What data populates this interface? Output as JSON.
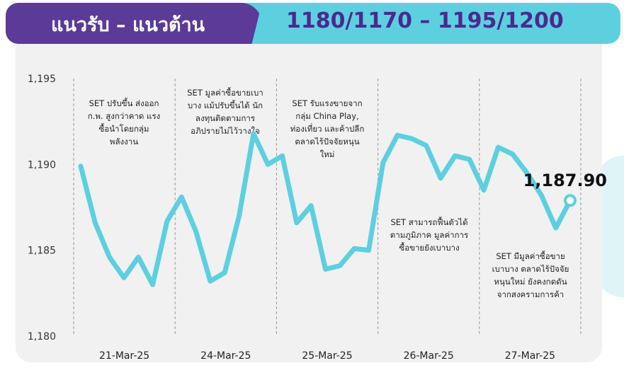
{
  "header": {
    "title": "แนวรับ – แนวต้าน",
    "levels": "1180/1170 – 1195/1200"
  },
  "colors": {
    "banner_left": "#5b3a98",
    "banner_right": "#5dd0df",
    "line": "#5dcfe0",
    "levels_text": "#4a2a8f"
  },
  "chart_data": {
    "type": "line",
    "y_ticks": [
      "1,195",
      "1,190",
      "1,185",
      "1,180"
    ],
    "ylim": [
      1180,
      1195
    ],
    "categories": [
      "21-Mar-25",
      "24-Mar-25",
      "25-Mar-25",
      "26-Mar-25",
      "27-Mar-25"
    ],
    "last_value_label": "1,187.90",
    "series": [
      {
        "values": [
          [
            1,
            1189.9
          ],
          [
            11,
            1186.6
          ],
          [
            21,
            1184.6
          ],
          [
            31,
            1183.4
          ],
          [
            41,
            1184.6
          ],
          [
            51,
            1183.0
          ],
          [
            61,
            1186.7
          ],
          [
            71,
            1188.1
          ],
          [
            81,
            1186.1
          ],
          [
            91,
            1183.2
          ],
          [
            101,
            1183.7
          ],
          [
            111,
            1187.0
          ],
          [
            121,
            1191.8
          ],
          [
            131,
            1190.0
          ],
          [
            141,
            1190.5
          ],
          [
            151,
            1186.6
          ],
          [
            161,
            1187.6
          ],
          [
            171,
            1183.9
          ],
          [
            181,
            1184.1
          ],
          [
            191,
            1185.1
          ],
          [
            201,
            1185.0
          ],
          [
            211,
            1190.1
          ],
          [
            221,
            1191.7
          ],
          [
            231,
            1191.5
          ],
          [
            241,
            1191.1
          ],
          [
            251,
            1189.2
          ],
          [
            261,
            1190.5
          ],
          [
            271,
            1190.3
          ],
          [
            281,
            1188.5
          ],
          [
            291,
            1191.0
          ],
          [
            301,
            1190.6
          ],
          [
            311,
            1189.5
          ],
          [
            321,
            1188.2
          ],
          [
            331,
            1186.3
          ],
          [
            341,
            1187.9
          ]
        ]
      }
    ],
    "annotations": [
      "SET ปรับขึ้น ส่งออก\nก.พ. สูงกว่าคาด แรง\nซื้อนำโดยกลุ่ม\nพลังงาน",
      "SET มูลค่าซื้อขายเบา\nบาง แม้ปรับขึ้นได้ นัก\nลงทุนติดตามการ\nอภิปรายไม่ไว้วางใจ",
      "SET รับแรงขายจาก\nกลุ่ม China Play,\nท่องเที่ยว และค้าปลีก\nตลาดไร้ปัจจัยหนุน\nใหม่",
      "SET สามารถฟื้นตัวได้\nตามภูมิภาค มูลค่าการ\nซื้อขายยังเบาบาง",
      "SET มีมูลค่าซื้อขาย\nเบาบาง ตลาดไร้ปัจจัย\nหนุนใหม่ ยังคงกดดัน\nจากสงครามการค้า"
    ]
  }
}
